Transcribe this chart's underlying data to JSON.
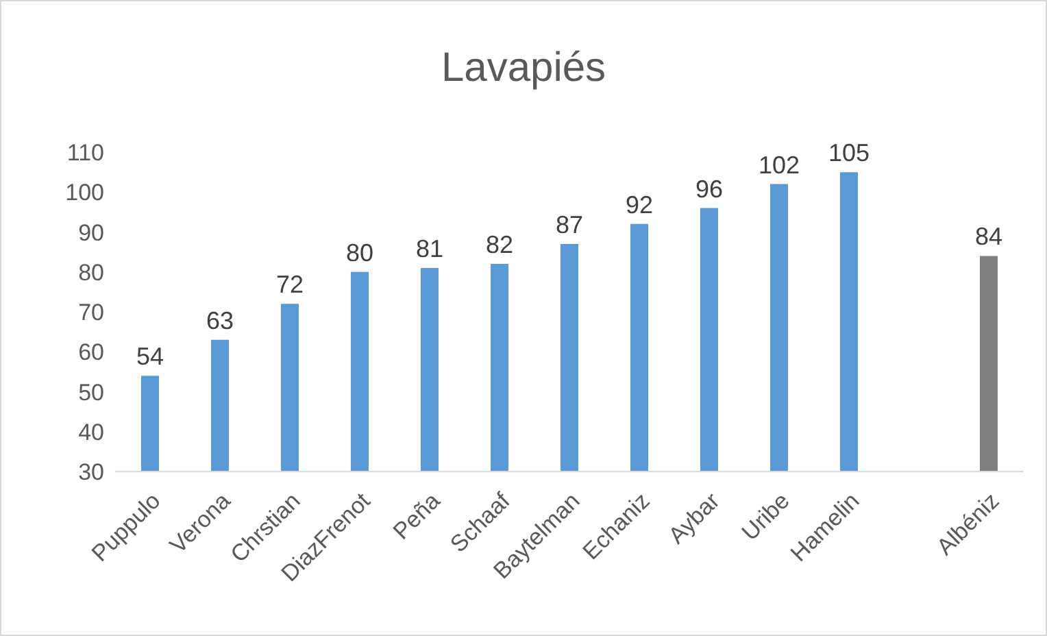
{
  "chart_data": {
    "type": "bar",
    "title": "Lavapiés",
    "categories": [
      "Puppulo",
      "Verona",
      "Chrstian",
      "DiazFrenot",
      "Peña",
      "Schaaf",
      "Baytelman",
      "Echaniz",
      "Aybar",
      "Uribe",
      "Hamelin",
      null,
      "Albéniz"
    ],
    "values": [
      54,
      63,
      72,
      80,
      81,
      82,
      87,
      92,
      96,
      102,
      105,
      null,
      84
    ],
    "colors": [
      "#5b9bd5",
      "#5b9bd5",
      "#5b9bd5",
      "#5b9bd5",
      "#5b9bd5",
      "#5b9bd5",
      "#5b9bd5",
      "#5b9bd5",
      "#5b9bd5",
      "#5b9bd5",
      "#5b9bd5",
      null,
      "#7f7f7f"
    ],
    "ylim": [
      30,
      110
    ],
    "yticks": [
      30,
      40,
      50,
      60,
      70,
      80,
      90,
      100,
      110
    ],
    "data_labels": true,
    "grid": false,
    "legend": false
  }
}
